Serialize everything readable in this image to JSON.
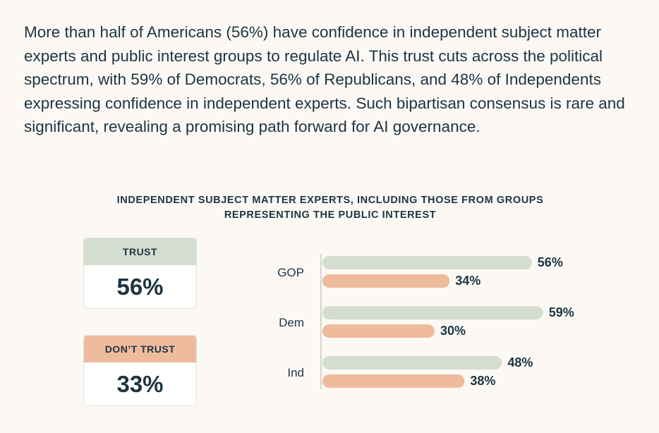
{
  "intro_text": "More than half of Americans (56%) have confidence in independent subject matter experts and public interest groups to regulate AI. This trust cuts across the political spectrum, with 59% of Democrats, 56% of Republicans, and 48% of Independents expressing confidence in independent experts. Such bipartisan consensus is rare and significant, revealing a promising path forward for AI governance.",
  "summary": {
    "trust_label": "TRUST",
    "trust_value": "56%",
    "distrust_label": "DON’T TRUST",
    "distrust_value": "33%"
  },
  "colors": {
    "trust": "#d5ddd0",
    "distrust": "#efbb9d",
    "text": "#1d3441",
    "axis": "#c9c7c2"
  },
  "chart_data": {
    "type": "bar",
    "orientation": "horizontal",
    "title": "INDEPENDENT SUBJECT MATTER EXPERTS, INCLUDING THOSE FROM GROUPS REPRESENTING THE PUBLIC INTEREST",
    "categories": [
      "GOP",
      "Dem",
      "Ind"
    ],
    "series": [
      {
        "name": "Trust",
        "values": [
          56,
          59,
          48
        ]
      },
      {
        "name": "Don't trust",
        "values": [
          34,
          30,
          38
        ]
      }
    ],
    "value_suffix": "%",
    "xlim": [
      0,
      100
    ],
    "grid": false
  }
}
